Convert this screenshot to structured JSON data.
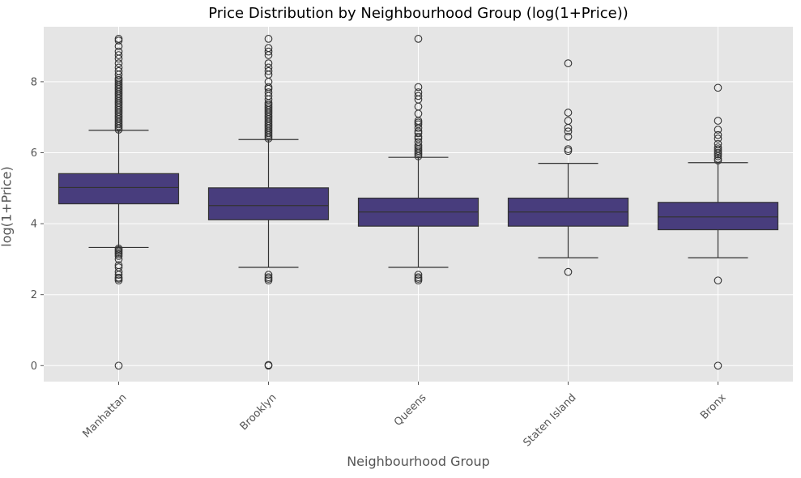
{
  "chart_data": {
    "type": "box",
    "title": "Price Distribution by Neighbourhood Group (log(1+Price))",
    "xlabel": "Neighbourhood Group",
    "ylabel": "log(1+Price)",
    "ylim": [
      -0.45,
      9.55
    ],
    "yticks": [
      "0",
      "2",
      "4",
      "6",
      "8"
    ],
    "grid": true,
    "background_color": "#E5E5E5",
    "box_color": "#483D7D",
    "line_color": "#333333",
    "categories": [
      "Manhattan",
      "Brooklyn",
      "Queens",
      "Staten Island",
      "Bronx"
    ],
    "boxes": [
      {
        "category": "Manhattan",
        "whisker_low": 3.33,
        "q1": 4.56,
        "median": 5.02,
        "q3": 5.41,
        "whisker_high": 6.63,
        "outliers": [
          0.0,
          2.4,
          2.45,
          2.48,
          2.56,
          2.64,
          2.77,
          2.83,
          3.0,
          3.09,
          3.14,
          3.18,
          3.22,
          3.26,
          3.3,
          6.65,
          6.7,
          6.75,
          6.8,
          6.85,
          6.9,
          6.95,
          7.0,
          7.05,
          7.1,
          7.15,
          7.2,
          7.25,
          7.3,
          7.35,
          7.4,
          7.45,
          7.5,
          7.55,
          7.6,
          7.65,
          7.7,
          7.75,
          7.8,
          7.85,
          7.9,
          7.95,
          8.0,
          8.05,
          8.1,
          8.2,
          8.3,
          8.4,
          8.52,
          8.65,
          8.75,
          8.85,
          9.0,
          9.16,
          9.21
        ]
      },
      {
        "category": "Brooklyn",
        "whisker_low": 2.77,
        "q1": 4.11,
        "median": 4.51,
        "q3": 5.01,
        "whisker_high": 6.37,
        "outliers": [
          0.0,
          0.02,
          2.4,
          2.45,
          2.49,
          2.56,
          6.4,
          6.45,
          6.5,
          6.55,
          6.6,
          6.65,
          6.7,
          6.75,
          6.8,
          6.85,
          6.9,
          6.95,
          7.0,
          7.05,
          7.1,
          7.15,
          7.2,
          7.25,
          7.3,
          7.35,
          7.4,
          7.5,
          7.6,
          7.7,
          7.8,
          7.85,
          8.0,
          8.2,
          8.3,
          8.4,
          8.52,
          8.75,
          8.85,
          8.95,
          9.21
        ]
      },
      {
        "category": "Queens",
        "whisker_low": 2.77,
        "q1": 3.93,
        "median": 4.33,
        "q3": 4.72,
        "whisker_high": 5.87,
        "outliers": [
          2.4,
          2.45,
          2.49,
          2.56,
          5.9,
          5.95,
          6.0,
          6.05,
          6.1,
          6.15,
          6.2,
          6.3,
          6.4,
          6.45,
          6.55,
          6.6,
          6.7,
          6.8,
          6.85,
          6.9,
          7.1,
          7.3,
          7.5,
          7.6,
          7.7,
          7.85,
          9.21
        ]
      },
      {
        "category": "Staten Island",
        "whisker_low": 3.04,
        "q1": 3.93,
        "median": 4.33,
        "q3": 4.72,
        "whisker_high": 5.7,
        "outliers": [
          2.64,
          6.05,
          6.1,
          6.45,
          6.6,
          6.7,
          6.9,
          7.13,
          8.52
        ]
      },
      {
        "category": "Bronx",
        "whisker_low": 3.04,
        "q1": 3.83,
        "median": 4.19,
        "q3": 4.6,
        "whisker_high": 5.72,
        "outliers": [
          0.0,
          2.4,
          5.78,
          5.83,
          5.9,
          5.95,
          6.0,
          6.05,
          6.1,
          6.15,
          6.25,
          6.4,
          6.5,
          6.65,
          6.9,
          7.83
        ]
      }
    ]
  }
}
